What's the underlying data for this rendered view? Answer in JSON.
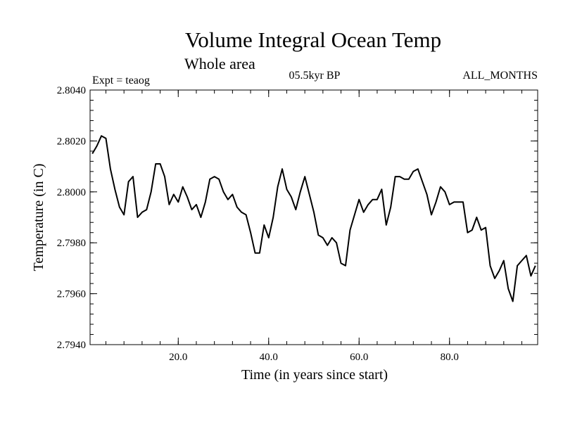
{
  "chart_data": {
    "type": "line",
    "title": "Volume Integral Ocean Temp",
    "subtitle": "Whole area",
    "left_label": "Expt = teaog",
    "center_label": "05.5kyr BP",
    "right_label": "ALL_MONTHS",
    "xlabel": "Time (in years since start)",
    "ylabel": "Temperature (in C)",
    "xlim": [
      0.5,
      99.5
    ],
    "ylim": [
      2.794,
      2.804
    ],
    "x_ticks": [
      20,
      40,
      60,
      80
    ],
    "x_tick_labels": [
      "20.0",
      "40.0",
      "60.0",
      "80.0"
    ],
    "y_ticks": [
      2.794,
      2.796,
      2.798,
      2.8,
      2.802,
      2.804
    ],
    "y_tick_labels": [
      "2.7940",
      "2.7960",
      "2.7980",
      "2.8000",
      "2.8020",
      "2.8040"
    ],
    "grid": false,
    "color": "#000000",
    "series": [
      {
        "name": "teaog",
        "x": [
          1,
          2,
          3,
          4,
          5,
          6,
          7,
          8,
          9,
          10,
          11,
          12,
          13,
          14,
          15,
          16,
          17,
          18,
          19,
          20,
          21,
          22,
          23,
          24,
          25,
          26,
          27,
          28,
          29,
          30,
          31,
          32,
          33,
          34,
          35,
          36,
          37,
          38,
          39,
          40,
          41,
          42,
          43,
          44,
          45,
          46,
          47,
          48,
          49,
          50,
          51,
          52,
          53,
          54,
          55,
          56,
          57,
          58,
          59,
          60,
          61,
          62,
          63,
          64,
          65,
          66,
          67,
          68,
          69,
          70,
          71,
          72,
          73,
          74,
          75,
          76,
          77,
          78,
          79,
          80,
          81,
          82,
          83,
          84,
          85,
          86,
          87,
          88,
          89,
          90,
          91,
          92,
          93,
          94,
          95,
          96,
          97,
          98,
          99
        ],
        "values": [
          2.8015,
          2.8018,
          2.8022,
          2.8021,
          2.8009,
          2.8001,
          2.7994,
          2.7991,
          2.8004,
          2.8006,
          2.799,
          2.7992,
          2.7993,
          2.8,
          2.8011,
          2.8011,
          2.8006,
          2.7995,
          2.7999,
          2.7996,
          2.8002,
          2.7998,
          2.7993,
          2.7995,
          2.799,
          2.7996,
          2.8005,
          2.8006,
          2.8005,
          2.8,
          2.7997,
          2.7999,
          2.7994,
          2.7992,
          2.7991,
          2.7984,
          2.7976,
          2.7976,
          2.7987,
          2.7982,
          2.799,
          2.8002,
          2.8009,
          2.8001,
          2.7998,
          2.7993,
          2.8,
          2.8006,
          2.7999,
          2.7992,
          2.7983,
          2.7982,
          2.7979,
          2.7982,
          2.798,
          2.7972,
          2.7971,
          2.7985,
          2.7991,
          2.7997,
          2.7992,
          2.7995,
          2.7997,
          2.7997,
          2.8001,
          2.7987,
          2.7994,
          2.8006,
          2.8006,
          2.8005,
          2.8005,
          2.8008,
          2.8009,
          2.8004,
          2.7999,
          2.7991,
          2.7996,
          2.8002,
          2.8,
          2.7995,
          2.7996,
          2.7996,
          2.7996,
          2.7984,
          2.7985,
          2.799,
          2.7985,
          2.7986,
          2.7971,
          2.7966,
          2.7969,
          2.7973,
          2.7962,
          2.7957,
          2.7971,
          2.7973,
          2.7975,
          2.7967,
          2.7971
        ]
      }
    ]
  }
}
